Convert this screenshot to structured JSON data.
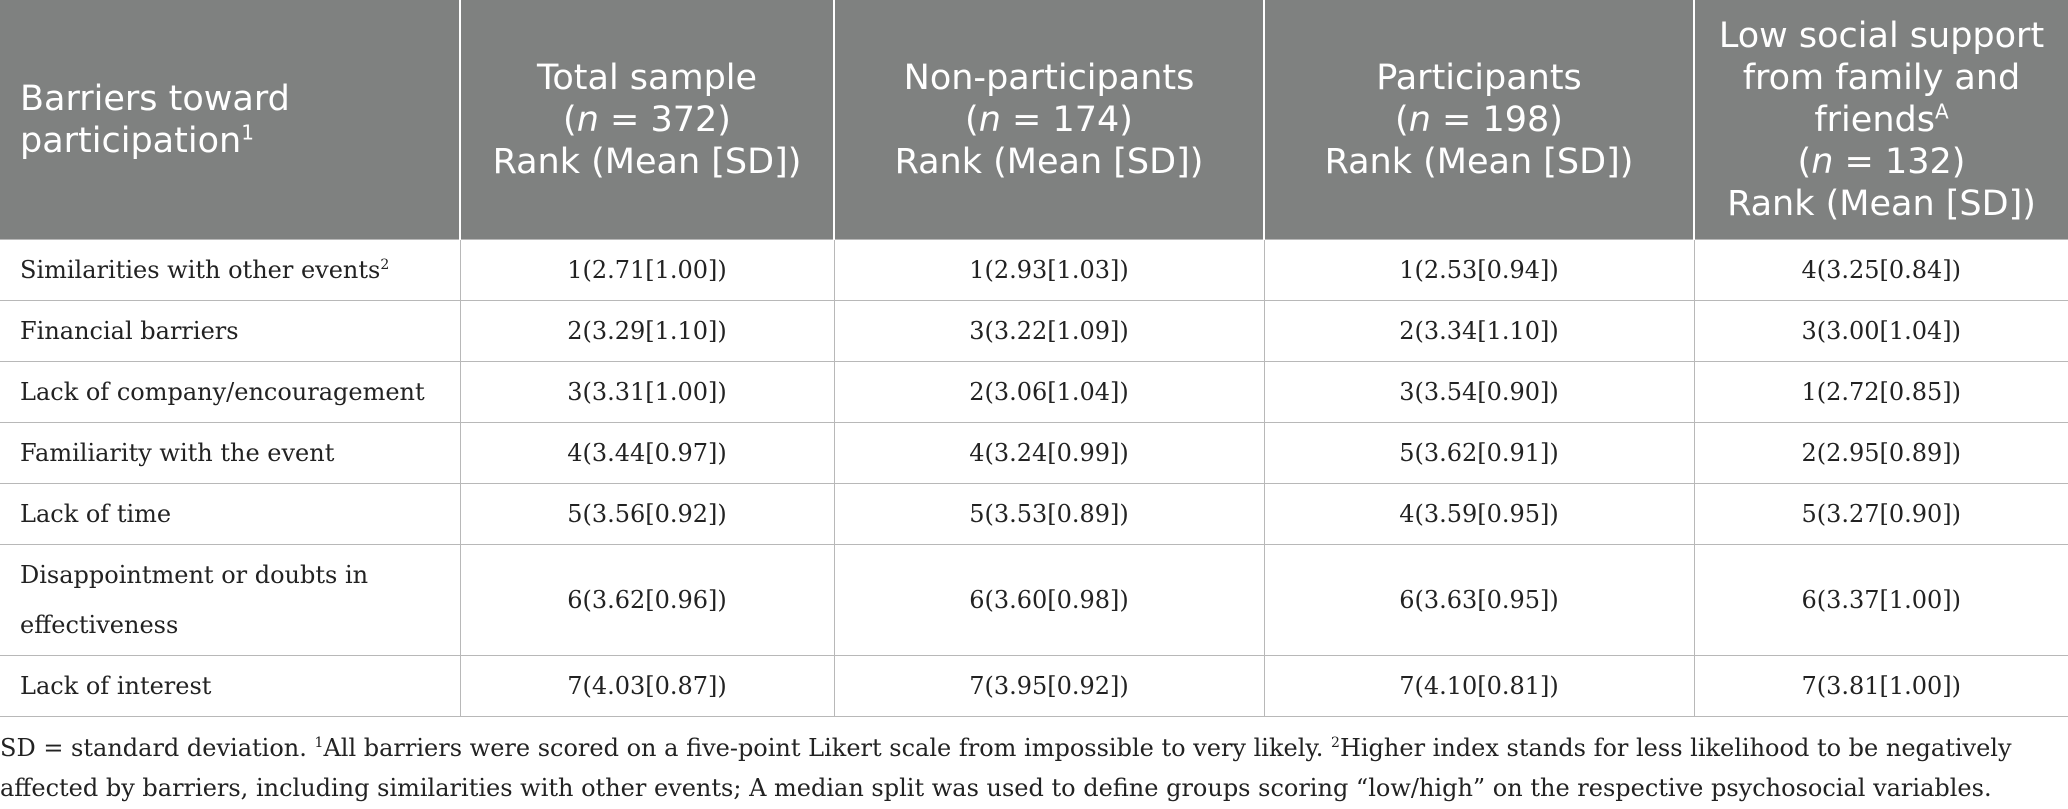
{
  "header": {
    "col1": {
      "title": "Barriers toward participation",
      "sup": "1"
    },
    "col2": {
      "title": "Total sample",
      "n_prefix": "(",
      "n_var": "n",
      "n_value": " = 372)",
      "rank": "Rank (Mean [SD])"
    },
    "col3": {
      "title": "Non-participants",
      "n_prefix": "(",
      "n_var": "n",
      "n_value": " = 174)",
      "rank": "Rank (Mean [SD])"
    },
    "col4": {
      "title": "Participants",
      "n_prefix": "(",
      "n_var": "n",
      "n_value": " = 198)",
      "rank": "Rank (Mean [SD])"
    },
    "col5": {
      "title_a": "Low social support",
      "title_b": "from family and",
      "title_c": "friends",
      "sup": "A",
      "n_prefix": "(",
      "n_var": "n",
      "n_value": " = 132)",
      "rank": "Rank (Mean [SD])"
    }
  },
  "rows": [
    {
      "barrier": "Similarities with other events",
      "sup": "2",
      "total": "1(2.71[1.00])",
      "nonpart": "1(2.93[1.03])",
      "part": "1(2.53[0.94])",
      "lowsupport": "4(3.25[0.84])"
    },
    {
      "barrier": "Financial barriers",
      "sup": "",
      "total": "2(3.29[1.10])",
      "nonpart": "3(3.22[1.09])",
      "part": "2(3.34[1.10])",
      "lowsupport": "3(3.00[1.04])"
    },
    {
      "barrier": "Lack of company/encouragement",
      "sup": "",
      "total": "3(3.31[1.00])",
      "nonpart": "2(3.06[1.04])",
      "part": "3(3.54[0.90])",
      "lowsupport": "1(2.72[0.85])"
    },
    {
      "barrier": "Familiarity with the event",
      "sup": "",
      "total": "4(3.44[0.97])",
      "nonpart": "4(3.24[0.99])",
      "part": "5(3.62[0.91])",
      "lowsupport": "2(2.95[0.89])"
    },
    {
      "barrier": "Lack of time",
      "sup": "",
      "total": "5(3.56[0.92])",
      "nonpart": "5(3.53[0.89])",
      "part": "4(3.59[0.95])",
      "lowsupport": "5(3.27[0.90])"
    },
    {
      "barrier_line1": "Disappointment or doubts in",
      "barrier_line2": "effectiveness",
      "total": "6(3.62[0.96])",
      "nonpart": "6(3.60[0.98])",
      "part": "6(3.63[0.95])",
      "lowsupport": "6(3.37[1.00])"
    },
    {
      "barrier": "Lack of interest",
      "sup": "",
      "total": "7(4.03[0.87])",
      "nonpart": "7(3.95[0.92])",
      "part": "7(4.10[0.81])",
      "lowsupport": "7(3.81[1.00])"
    }
  ],
  "footnote": {
    "part1": "SD = standard deviation. ",
    "sup1": "1",
    "part2": "All barriers were scored on a five-point Likert scale from impossible to very likely. ",
    "sup2": "2",
    "part3": "Higher index stands for less likelihood to be negatively affected by barriers, including similarities with other events; A median split was used to define groups scoring “low/high” on the respective psychosocial variables."
  }
}
